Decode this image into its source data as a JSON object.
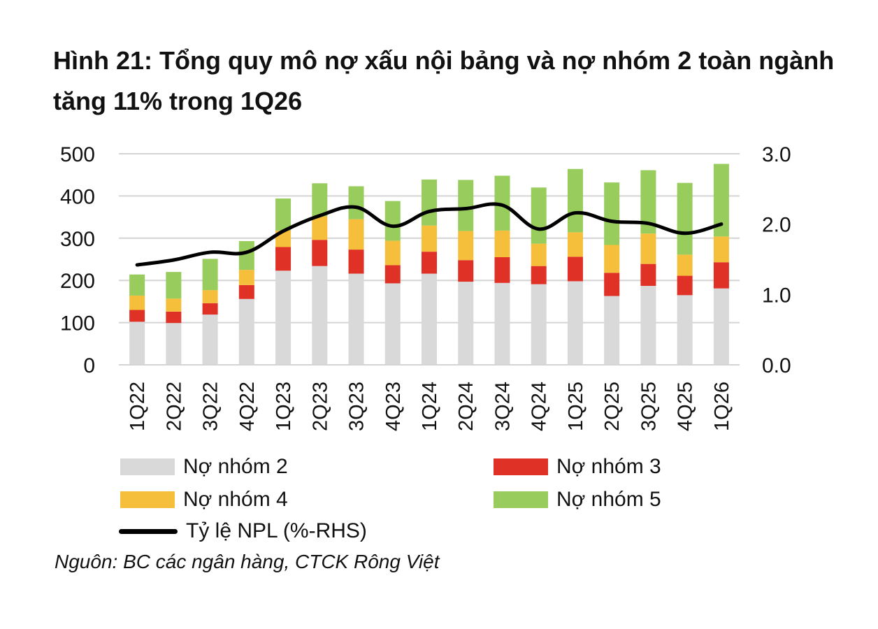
{
  "title": "Hình 21: Tổng quy mô nợ xấu nội bảng và nợ nhóm 2 toàn ngành tăng 11% trong 1Q26",
  "source": "Nguôn: BC các ngân hàng, CTCK Rông Việt",
  "legend": [
    {
      "label": "Nợ nhóm 2",
      "color": "#d9d9d9",
      "kind": "bar"
    },
    {
      "label": "Nợ nhóm 3",
      "color": "#e03127",
      "kind": "bar"
    },
    {
      "label": "Nợ nhóm 4",
      "color": "#f5bf3c",
      "kind": "bar"
    },
    {
      "label": "Nợ nhóm 5",
      "color": "#98cc5c",
      "kind": "bar"
    },
    {
      "label": "Tỷ lệ NPL (%-RHS)",
      "color": "#000000",
      "kind": "line"
    }
  ],
  "chart_data": {
    "type": "bar",
    "stacked": true,
    "categories": [
      "1Q22",
      "2Q22",
      "3Q22",
      "4Q22",
      "1Q23",
      "2Q23",
      "3Q23",
      "4Q23",
      "1Q24",
      "2Q24",
      "3Q24",
      "4Q24",
      "1Q25",
      "2Q25",
      "3Q25",
      "4Q25",
      "1Q26"
    ],
    "series": [
      {
        "name": "Nợ nhóm 2",
        "color": "#d9d9d9",
        "values": [
          102,
          99,
          119,
          156,
          223,
          234,
          216,
          193,
          216,
          197,
          194,
          191,
          198,
          163,
          187,
          165,
          181
        ]
      },
      {
        "name": "Nợ nhóm 3",
        "color": "#e03127",
        "values": [
          28,
          27,
          27,
          33,
          56,
          62,
          57,
          43,
          52,
          51,
          61,
          43,
          58,
          55,
          52,
          46,
          62
        ]
      },
      {
        "name": "Nợ nhóm 4",
        "color": "#f5bf3c",
        "values": [
          34,
          31,
          31,
          36,
          39,
          56,
          72,
          58,
          62,
          69,
          63,
          53,
          58,
          66,
          72,
          50,
          61
        ]
      },
      {
        "name": "Nợ nhóm 5",
        "color": "#98cc5c",
        "values": [
          50,
          63,
          74,
          68,
          76,
          78,
          78,
          94,
          109,
          121,
          130,
          133,
          150,
          148,
          150,
          170,
          172
        ]
      }
    ],
    "line": {
      "name": "Tỷ lệ NPL (%-RHS)",
      "color": "#000000",
      "axis": "right",
      "values": [
        1.42,
        1.49,
        1.6,
        1.6,
        1.9,
        2.12,
        2.24,
        1.97,
        2.18,
        2.22,
        2.27,
        1.93,
        2.16,
        2.04,
        2.01,
        1.87,
        2.0
      ]
    },
    "yLeft": {
      "min": 0,
      "max": 500,
      "ticks": [
        0,
        100,
        200,
        300,
        400,
        500
      ]
    },
    "yRight": {
      "min": 0,
      "max": 3,
      "ticks": [
        "0.0",
        "1.0",
        "2.0",
        "3.0"
      ]
    },
    "grid": true
  }
}
